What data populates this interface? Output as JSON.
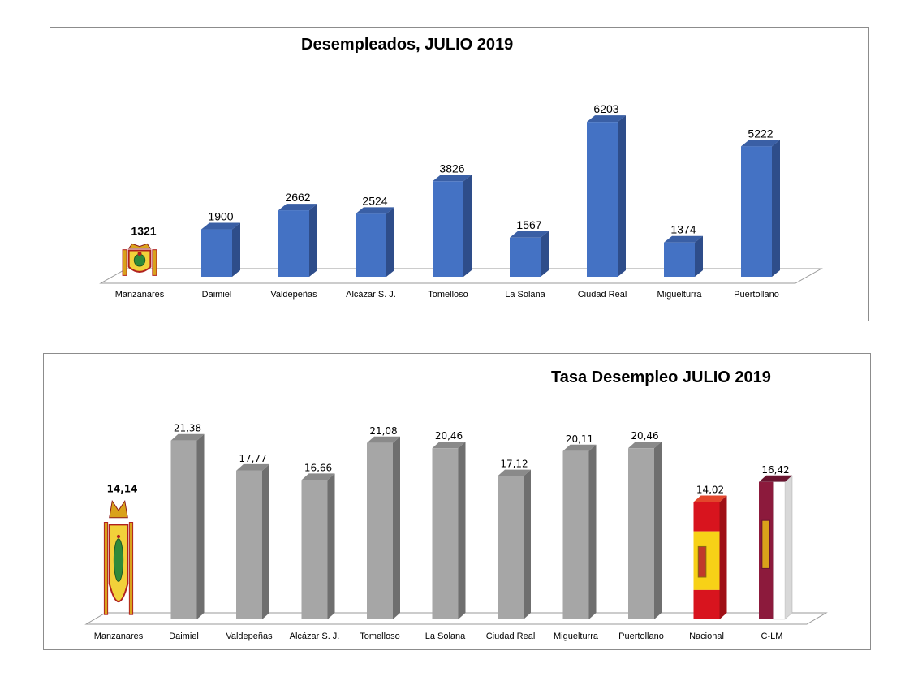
{
  "chart_data": [
    {
      "type": "bar",
      "title": "Desempleados, JULIO 2019",
      "categories": [
        "Manzanares",
        "Daimiel",
        "Valdepeñas",
        "Alcázar S. J.",
        "Tomelloso",
        "La Solana",
        "Ciudad Real",
        "Miguelturra",
        "Puertollano"
      ],
      "values": [
        1321,
        1900,
        2662,
        2524,
        3826,
        1567,
        6203,
        1374,
        5222
      ],
      "value_labels": [
        "1321",
        "1900",
        "2662",
        "2524",
        "3826",
        "1567",
        "6203",
        "1374",
        "5222"
      ],
      "ylim": [
        0,
        6500
      ],
      "grid": false,
      "colors": {
        "bar_front": "#4472c4",
        "bar_side": "#2e4d8a",
        "bar_top": "#3a5fa5"
      },
      "highlight": {
        "category": "Manzanares",
        "style": "coat-of-arms"
      }
    },
    {
      "type": "bar",
      "title": "Tasa Desempleo JULIO 2019",
      "categories": [
        "Manzanares",
        "Daimiel",
        "Valdepeñas",
        "Alcázar S. J.",
        "Tomelloso",
        "La Solana",
        "Ciudad Real",
        "Miguelturra",
        "Puertollano",
        "Nacional",
        "C-LM"
      ],
      "values": [
        14.14,
        21.38,
        17.77,
        16.66,
        21.08,
        20.46,
        17.12,
        20.11,
        20.46,
        14.02,
        16.42
      ],
      "value_labels": [
        "14,14",
        "21,38",
        "17,77",
        "16,66",
        "21,08",
        "20,46",
        "17,12",
        "20,11",
        "20,46",
        "14,02",
        "16,42"
      ],
      "ylim": [
        0,
        23
      ],
      "grid": false,
      "colors": {
        "bar_front": "#a6a6a6",
        "bar_side": "#6f6f6f",
        "bar_top": "#8a8a8a",
        "spain_red": "#d8141e",
        "spain_yellow": "#f7d117",
        "clm_maroon": "#8c1a3c"
      },
      "highlights": [
        {
          "category": "Manzanares",
          "style": "coat-of-arms"
        },
        {
          "category": "Nacional",
          "style": "flag-spain"
        },
        {
          "category": "C-LM",
          "style": "flag-castilla-la-mancha"
        }
      ]
    }
  ]
}
